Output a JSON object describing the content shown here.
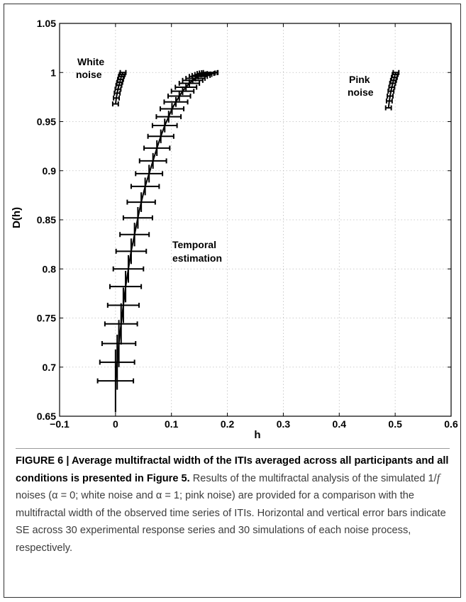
{
  "chart_data": {
    "type": "line",
    "xlabel": "h",
    "ylabel": "D(h)",
    "xlim": [
      -0.1,
      0.6
    ],
    "ylim": [
      0.65,
      1.05
    ],
    "xticks": [
      "−0.1",
      "0",
      "0.1",
      "0.2",
      "0.3",
      "0.4",
      "0.5",
      "0.6"
    ],
    "yticks": [
      "0.65",
      "0.7",
      "0.75",
      "0.8",
      "0.85",
      "0.9",
      "0.95",
      "1",
      "1.05"
    ],
    "grid": true,
    "series": [
      {
        "label": "Temporal estimation",
        "h": [
          0.0,
          0.003,
          0.006,
          0.01,
          0.014,
          0.018,
          0.023,
          0.028,
          0.034,
          0.04,
          0.046,
          0.053,
          0.06,
          0.067,
          0.074,
          0.081,
          0.088,
          0.095,
          0.101,
          0.108,
          0.114,
          0.12,
          0.126,
          0.132,
          0.138,
          0.143,
          0.148,
          0.153,
          0.157,
          0.161,
          0.164,
          0.168,
          0.17
        ],
        "d": [
          0.686,
          0.705,
          0.724,
          0.744,
          0.763,
          0.782,
          0.8,
          0.818,
          0.835,
          0.852,
          0.868,
          0.884,
          0.897,
          0.91,
          0.923,
          0.935,
          0.946,
          0.955,
          0.963,
          0.97,
          0.976,
          0.981,
          0.985,
          0.989,
          0.992,
          0.994,
          0.996,
          0.997,
          0.998,
          0.999,
          0.9995,
          0.9998,
          1.0
        ],
        "h_err": [
          0.032,
          0.031,
          0.03,
          0.029,
          0.028,
          0.028,
          0.027,
          0.027,
          0.026,
          0.026,
          0.025,
          0.025,
          0.024,
          0.024,
          0.023,
          0.023,
          0.022,
          0.022,
          0.021,
          0.021,
          0.02,
          0.02,
          0.019,
          0.018,
          0.018,
          0.017,
          0.016,
          0.016,
          0.015,
          0.015,
          0.014,
          0.014,
          0.013
        ],
        "d_err": [
          0.032,
          0.028,
          0.024,
          0.021,
          0.018,
          0.016,
          0.014,
          0.013,
          0.012,
          0.011,
          0.01,
          0.009,
          0.009,
          0.008,
          0.008,
          0.007,
          0.007,
          0.006,
          0.006,
          0.005,
          0.005,
          0.004,
          0.004,
          0.004,
          0.003,
          0.003,
          0.003,
          0.002,
          0.002,
          0.002,
          0.002,
          0.001,
          0.001
        ]
      },
      {
        "label": "White noise",
        "h": [
          0.0,
          0.0015,
          0.003,
          0.0045,
          0.006,
          0.0075,
          0.009,
          0.0105,
          0.012,
          0.0135
        ],
        "d": [
          0.968,
          0.974,
          0.979,
          0.983,
          0.987,
          0.99,
          0.993,
          0.996,
          0.998,
          1.0
        ],
        "h_err": [
          0.005,
          0.005,
          0.005,
          0.005,
          0.005,
          0.005,
          0.005,
          0.005,
          0.005,
          0.005
        ]
      },
      {
        "label": "Pink noise",
        "h": [
          0.488,
          0.4895,
          0.491,
          0.4925,
          0.494,
          0.4955,
          0.497,
          0.4985,
          0.5,
          0.5015
        ],
        "d": [
          0.964,
          0.971,
          0.976,
          0.981,
          0.985,
          0.989,
          0.992,
          0.995,
          0.998,
          1.0
        ],
        "h_err": [
          0.005,
          0.005,
          0.005,
          0.005,
          0.005,
          0.005,
          0.005,
          0.005,
          0.005,
          0.005
        ]
      }
    ],
    "annotations": {
      "white_noise_line1": "White",
      "white_noise_line2": "noise",
      "pink_noise_line1": "Pink",
      "pink_noise_line2": "noise",
      "temporal_line1": "Temporal",
      "temporal_line2": "estimation"
    }
  },
  "caption": {
    "heading": "FIGURE 6 | Average multifractal width of the ITIs averaged across all participants and all conditions is presented in Figure 5.",
    "body_part1": " Results of the multifractal analysis of the simulated 1/",
    "body_italic": "f",
    "body_part2": " noises (α = 0; white noise and α = 1; pink noise) are provided for a comparison with the multifractal width of the observed time series of ITIs. Horizontal and vertical error bars indicate SE across 30 experimental response series and 30 simulations of each noise process, respectively."
  }
}
